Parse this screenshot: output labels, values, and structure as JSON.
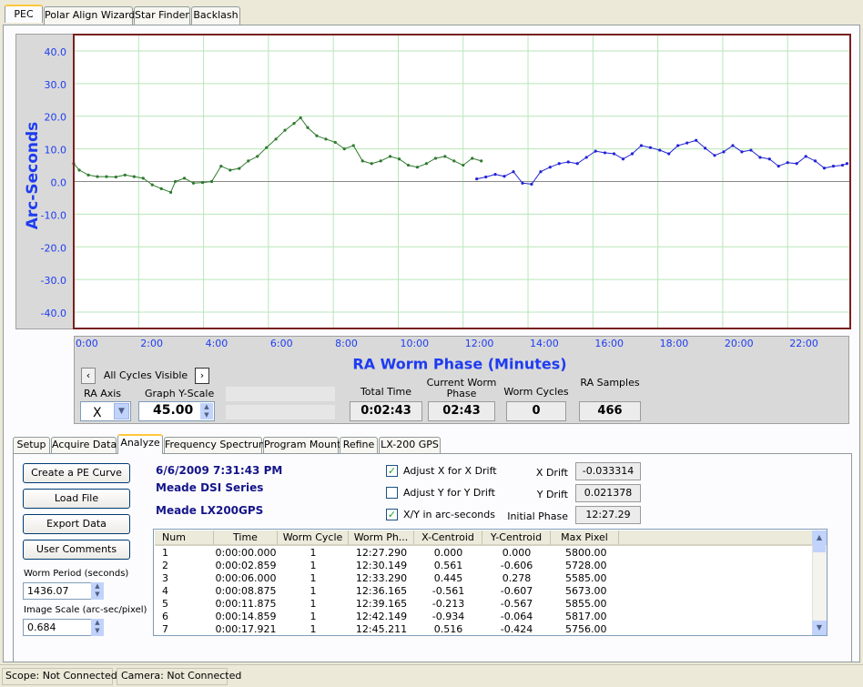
{
  "top_tabs": [
    "PEC",
    "Polar Align Wizard",
    "Star Finder",
    "Backlash"
  ],
  "chart_data": {
    "type": "scatter",
    "y_label": "Arc-Seconds",
    "x_label": "RA Worm Phase (Minutes)",
    "xlim": [
      0,
      23.93
    ],
    "ylim": [
      -45,
      45
    ],
    "xticks": [
      {
        "value": 0,
        "label": "0:00"
      },
      {
        "value": 2,
        "label": "2:00"
      },
      {
        "value": 4,
        "label": "4:00"
      },
      {
        "value": 6,
        "label": "6:00"
      },
      {
        "value": 8,
        "label": "8:00"
      },
      {
        "value": 10,
        "label": "10:00"
      },
      {
        "value": 12,
        "label": "12:00"
      },
      {
        "value": 14,
        "label": "14:00"
      },
      {
        "value": 16,
        "label": "16:00"
      },
      {
        "value": 18,
        "label": "18:00"
      },
      {
        "value": 20,
        "label": "20:00"
      },
      {
        "value": 22,
        "label": "22:00"
      }
    ],
    "yticks": [
      {
        "value": 40,
        "label": "40.0"
      },
      {
        "value": 30,
        "label": "30.0"
      },
      {
        "value": 20,
        "label": "20.0"
      },
      {
        "value": 10,
        "label": "10.0"
      },
      {
        "value": 0,
        "label": "0.0"
      },
      {
        "value": -10,
        "label": "-10.0"
      },
      {
        "value": -20,
        "label": "-20.0"
      },
      {
        "value": -30,
        "label": "-30.0"
      },
      {
        "value": -40,
        "label": "-40.0"
      }
    ],
    "grid": true,
    "series": [
      {
        "color": "#2f7a2f",
        "x": [
          0,
          0.17,
          0.45,
          0.73,
          1.01,
          1.3,
          1.58,
          1.86,
          2.14,
          2.42,
          2.7,
          2.99,
          3.13,
          3.41,
          3.69,
          3.97,
          4.25,
          4.54,
          4.82,
          5.1,
          5.38,
          5.66,
          5.94,
          6.23,
          6.51,
          6.79,
          6.99,
          7.21,
          7.49,
          7.77,
          8.06,
          8.34,
          8.62,
          8.9,
          9.18,
          9.46,
          9.75,
          10.03,
          10.31,
          10.59,
          10.87,
          11.15,
          11.44,
          11.72,
          12.0,
          12.28,
          12.56
        ],
        "values": [
          5.5,
          3.5,
          2,
          1.5,
          1.5,
          1.4,
          2,
          1.5,
          1,
          -1,
          -2.2,
          -3.3,
          0,
          1,
          -0.5,
          -0.3,
          0,
          4.7,
          3.5,
          4,
          6.3,
          7.7,
          10.4,
          13,
          15.7,
          17.8,
          19.5,
          16.5,
          14,
          13,
          12,
          10,
          11,
          6.3,
          5.5,
          6.3,
          7.7,
          6.9,
          5,
          4.4,
          5.5,
          7.1,
          7.7,
          6.3,
          5,
          7.1,
          6.3
        ]
      },
      {
        "color": "#2323d6",
        "x": [
          12.42,
          12.7,
          12.99,
          13.27,
          13.55,
          13.83,
          14.11,
          14.39,
          14.68,
          14.96,
          15.24,
          15.52,
          15.8,
          16.08,
          16.37,
          16.65,
          16.93,
          17.21,
          17.49,
          17.77,
          18.06,
          18.34,
          18.62,
          18.9,
          19.18,
          19.46,
          19.75,
          20.03,
          20.31,
          20.59,
          20.87,
          21.15,
          21.44,
          21.72,
          22.0,
          22.28,
          22.56,
          22.85,
          23.13,
          23.41,
          23.69,
          23.83
        ],
        "values": [
          0.8,
          1.4,
          2.2,
          1.6,
          3,
          -0.5,
          -0.8,
          3,
          4.4,
          5.5,
          6,
          5.5,
          7.4,
          9.3,
          8.8,
          8.5,
          6.9,
          8.5,
          11,
          10.4,
          9.6,
          8.5,
          11,
          11.8,
          12.6,
          10.2,
          8,
          9.1,
          11,
          9.1,
          9.6,
          7.4,
          6.9,
          4.7,
          5.8,
          5.5,
          7.7,
          6.3,
          4.1,
          4.7,
          5,
          5.5
        ]
      }
    ]
  },
  "controls": {
    "cycles": "All Cycles Visible",
    "ra_axis_label": "RA Axis",
    "ra_axis_value": "X",
    "y_scale_label": "Graph Y-Scale",
    "y_scale_value": "45.00"
  },
  "stats": [
    {
      "label": "Total Time",
      "value": "0:02:43"
    },
    {
      "label": "Current Worm Phase",
      "value": "02:43"
    },
    {
      "label": "Worm Cycles",
      "value": "0"
    },
    {
      "label": "RA Samples",
      "value": "466"
    }
  ],
  "bottom_tabs": [
    "Setup",
    "Acquire Data",
    "Analyze",
    "Frequency Spectrum",
    "Program Mount",
    "Refine",
    "LX-200 GPS"
  ],
  "buttons": [
    "Create a PE Curve",
    "Load File",
    "Export Data",
    "User Comments"
  ],
  "worm_period": {
    "label": "Worm Period (seconds)",
    "value": "1436.07"
  },
  "image_scale": {
    "label": "Image Scale (arc-sec/pixel)",
    "value": "0.684"
  },
  "info": [
    "6/6/2009 7:31:43 PM",
    "Meade DSI Series",
    "Meade LX200GPS"
  ],
  "checkboxes": [
    {
      "label": "Adjust X for X Drift",
      "checked": true
    },
    {
      "label": "Adjust Y for Y Drift",
      "checked": false
    },
    {
      "label": "X/Y in arc-seconds",
      "checked": true
    }
  ],
  "drift": [
    {
      "label": "X Drift",
      "value": "-0.033314"
    },
    {
      "label": "Y Drift",
      "value": "0.021378"
    },
    {
      "label": "Initial Phase",
      "value": "12:27.29"
    }
  ],
  "table": {
    "columns": [
      "Num",
      "Time",
      "Worm Cycle",
      "Worm Ph...",
      "X-Centroid",
      "Y-Centroid",
      "Max Pixel"
    ],
    "rows": [
      [
        "1",
        "0:00:00.000",
        "1",
        "12:27.290",
        "0.000",
        "0.000",
        "5800.00"
      ],
      [
        "2",
        "0:00:02.859",
        "1",
        "12:30.149",
        "0.561",
        "-0.606",
        "5728.00"
      ],
      [
        "3",
        "0:00:06.000",
        "1",
        "12:33.290",
        "0.445",
        "0.278",
        "5585.00"
      ],
      [
        "4",
        "0:00:08.875",
        "1",
        "12:36.165",
        "-0.561",
        "-0.607",
        "5673.00"
      ],
      [
        "5",
        "0:00:11.875",
        "1",
        "12:39.165",
        "-0.213",
        "-0.567",
        "5855.00"
      ],
      [
        "6",
        "0:00:14.859",
        "1",
        "12:42.149",
        "-0.934",
        "-0.064",
        "5817.00"
      ],
      [
        "7",
        "0:00:17.921",
        "1",
        "12:45.211",
        "0.516",
        "-0.424",
        "5756.00"
      ]
    ]
  },
  "status": [
    "Scope: Not Connected",
    "Camera: Not Connected"
  ]
}
